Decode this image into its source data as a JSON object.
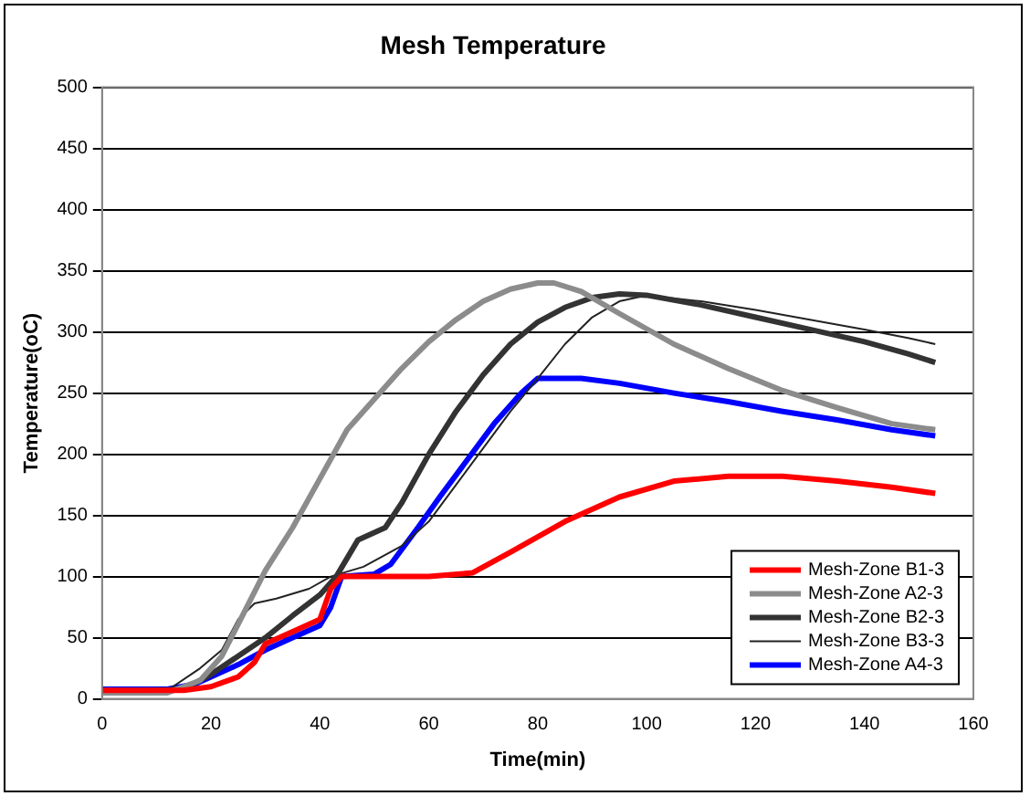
{
  "chart_data": {
    "type": "line",
    "title": "Mesh Temperature",
    "xlabel": "Time(min)",
    "ylabel": "Temperature(oC)",
    "xlim": [
      0,
      160
    ],
    "xticks": [
      0,
      20,
      40,
      60,
      80,
      100,
      120,
      140,
      160
    ],
    "ylim": [
      0,
      500
    ],
    "yticks": [
      0,
      50,
      100,
      150,
      200,
      250,
      300,
      350,
      400,
      450,
      500
    ],
    "grid": "y",
    "legend": "bottom right",
    "marker": "none",
    "line_style": "solid",
    "series": [
      {
        "name": "Mesh-Zone B1-3",
        "color": "#ff0000",
        "x": [
          0,
          10,
          15,
          20,
          25,
          28,
          30,
          35,
          40,
          42,
          44,
          50,
          60,
          68,
          75,
          85,
          95,
          105,
          115,
          125,
          135,
          145,
          153
        ],
        "values": [
          7,
          7,
          7,
          10,
          18,
          30,
          45,
          55,
          65,
          90,
          100,
          100,
          100,
          103,
          120,
          145,
          165,
          178,
          182,
          182,
          178,
          173,
          168
        ]
      },
      {
        "name": "Mesh-Zone A2-3",
        "color": "#8c8c8c",
        "x": [
          0,
          12,
          18,
          22,
          26,
          30,
          35,
          40,
          45,
          50,
          55,
          60,
          65,
          70,
          75,
          80,
          83,
          88,
          95,
          105,
          115,
          125,
          135,
          145,
          153
        ],
        "values": [
          5,
          5,
          15,
          35,
          70,
          105,
          140,
          180,
          220,
          245,
          270,
          292,
          310,
          325,
          335,
          340,
          340,
          333,
          315,
          290,
          270,
          252,
          238,
          225,
          220
        ]
      },
      {
        "name": "Mesh-Zone B2-3",
        "color": "#333333",
        "x": [
          0,
          15,
          20,
          25,
          30,
          35,
          40,
          43,
          47,
          52,
          55,
          60,
          65,
          70,
          75,
          80,
          85,
          90,
          95,
          100,
          110,
          120,
          130,
          140,
          148,
          153
        ],
        "values": [
          5,
          8,
          20,
          35,
          50,
          68,
          85,
          100,
          130,
          140,
          160,
          200,
          235,
          265,
          290,
          308,
          320,
          328,
          331,
          330,
          322,
          312,
          302,
          292,
          282,
          275
        ]
      },
      {
        "name": "Mesh-Zone B3-3",
        "color": "#222222",
        "x": [
          0,
          12,
          18,
          22,
          25,
          28,
          32,
          38,
          42,
          48,
          55,
          60,
          65,
          70,
          75,
          80,
          85,
          90,
          95,
          100,
          110,
          120,
          130,
          140,
          148,
          153
        ],
        "values": [
          5,
          7,
          25,
          40,
          65,
          78,
          82,
          90,
          100,
          108,
          125,
          145,
          175,
          205,
          235,
          262,
          290,
          312,
          325,
          330,
          325,
          318,
          310,
          302,
          295,
          290
        ]
      },
      {
        "name": "Mesh-Zone A4-3",
        "color": "#0000ff",
        "x": [
          0,
          12,
          17,
          20,
          25,
          30,
          35,
          40,
          42,
          44,
          50,
          53,
          58,
          62,
          67,
          72,
          77,
          80,
          88,
          95,
          105,
          115,
          125,
          135,
          145,
          153
        ],
        "values": [
          8,
          8,
          12,
          18,
          28,
          40,
          50,
          60,
          75,
          100,
          102,
          110,
          140,
          165,
          195,
          225,
          250,
          262,
          262,
          258,
          250,
          243,
          235,
          228,
          220,
          215
        ]
      }
    ]
  }
}
